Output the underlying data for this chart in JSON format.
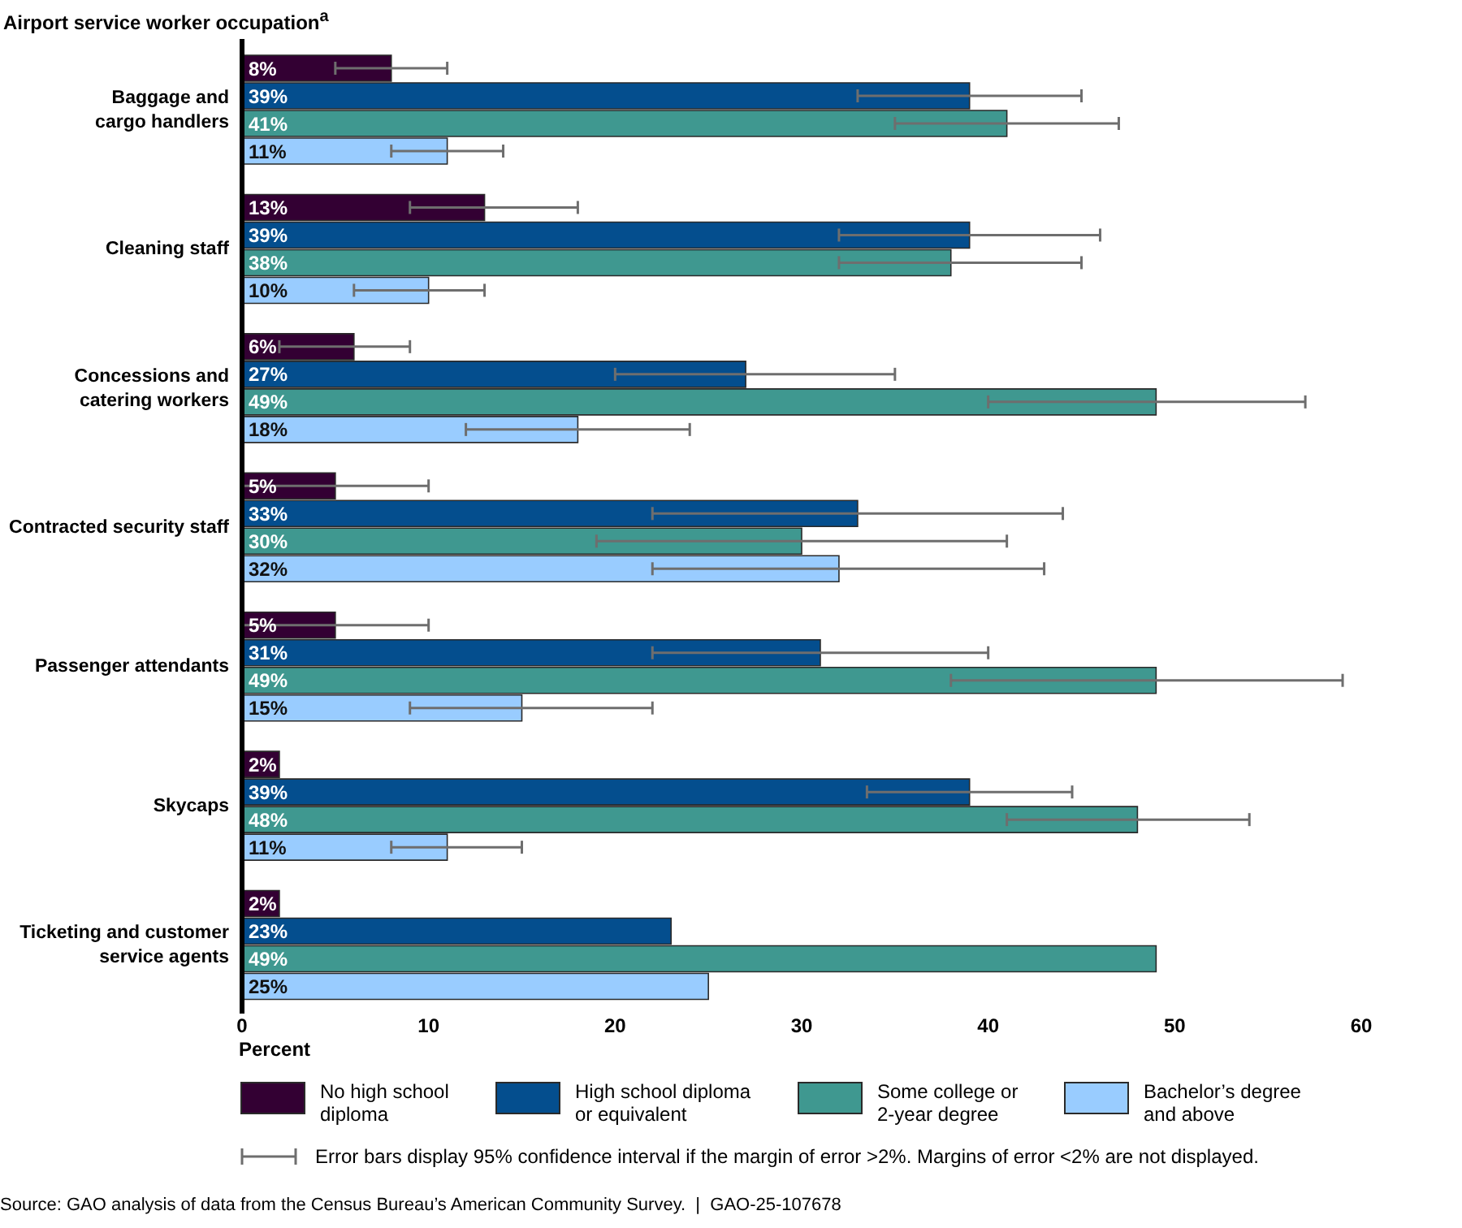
{
  "chart_data": {
    "type": "bar",
    "orientation": "horizontal",
    "ylabel": "Airport service worker occupation$^{a}$",
    "xlabel": "Percent",
    "categories": [
      "Baggage and cargo handlers",
      "Cleaning staff",
      "Concessions and catering workers",
      "Contracted security staff",
      "Passenger attendants",
      "Skycaps",
      "Ticketing and customer service agents"
    ],
    "series": [
      {
        "name": "No high school diploma",
        "color": "#330033",
        "values": [
          8,
          13,
          6,
          5,
          5,
          2,
          2
        ],
        "value_labels": [
          "8%",
          "13%",
          "6%",
          "5%",
          "5%",
          "2%",
          "2%"
        ],
        "errors": [
          3,
          [
            9,
            18
          ],
          [
            2,
            9
          ],
          [
            0,
            10
          ],
          [
            0,
            10
          ],
          null,
          null
        ]
      },
      {
        "name": "High school diploma or equivalent",
        "color": "#044e8e",
        "values": [
          39,
          39,
          27,
          33,
          31,
          39,
          23
        ],
        "value_labels": [
          "39%",
          "39%",
          "27%",
          "33%",
          "31%",
          "39%",
          "23%"
        ],
        "errors": [
          6,
          7,
          [
            20,
            35
          ],
          11,
          [
            22,
            40
          ],
          [
            33.5,
            44.5
          ],
          null
        ]
      },
      {
        "name": "Some college or 2-year degree",
        "color": "#3f9890",
        "values": [
          41,
          38,
          49,
          30,
          49,
          48,
          49
        ],
        "value_labels": [
          "41%",
          "38%",
          "49%",
          "30%",
          "49%",
          "48%",
          "49%"
        ],
        "errors": [
          6,
          [
            32,
            45
          ],
          [
            40,
            57
          ],
          [
            19,
            41
          ],
          [
            38,
            59
          ],
          [
            41,
            54
          ],
          null
        ]
      },
      {
        "name": "Bachelor’s degree and above",
        "color": "#99ccff",
        "values": [
          11,
          10,
          18,
          32,
          15,
          11,
          25
        ],
        "value_labels": [
          "11%",
          "10%",
          "18%",
          "32%",
          "15%",
          "11%",
          "25%"
        ],
        "errors": [
          3,
          [
            6,
            13
          ],
          6,
          [
            22,
            43
          ],
          [
            9,
            22
          ],
          [
            8,
            15
          ],
          null
        ]
      }
    ],
    "xlim": [
      0,
      60
    ],
    "xticks": [
      0,
      10,
      20,
      30,
      40,
      50,
      60
    ],
    "legend": "bottom",
    "annotations": [
      "Error bars display 95% confidence interval if the margin of error >2%. Margins of error <2% are not displayed.",
      "Source: GAO analysis of data from the Census Bureau’s American Community Survey.  |  GAO-25-107678"
    ]
  }
}
